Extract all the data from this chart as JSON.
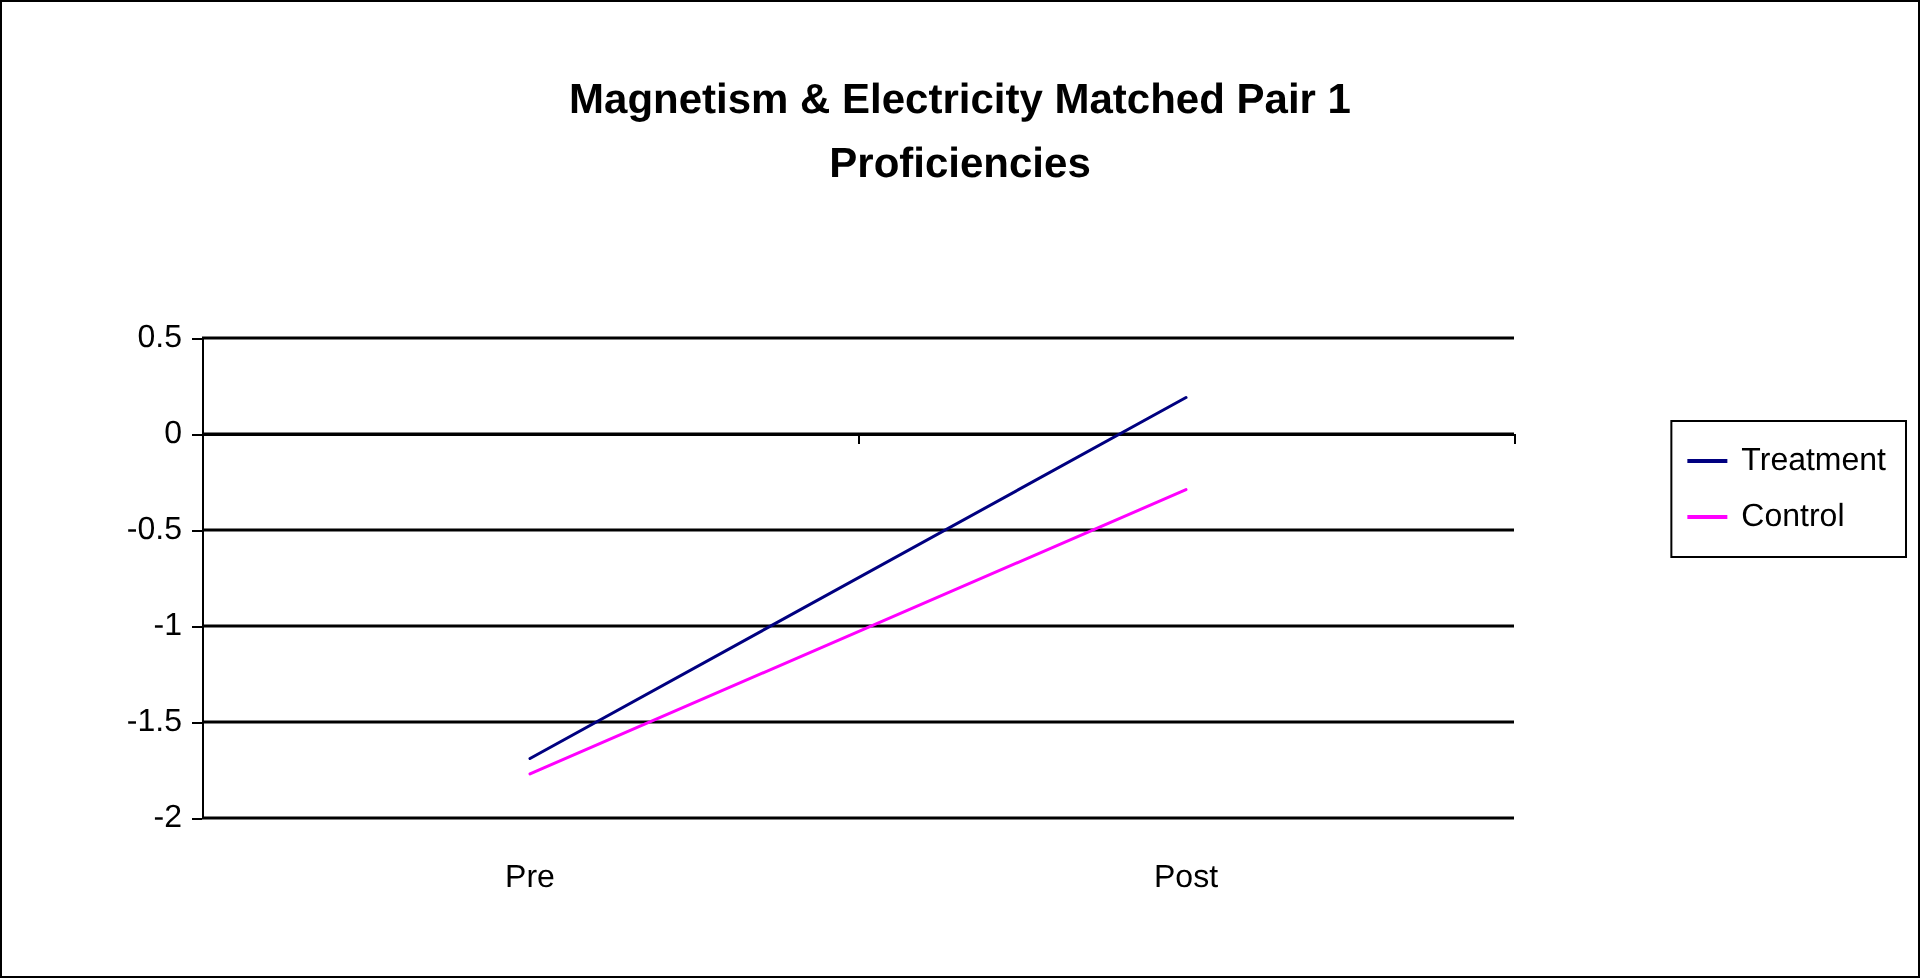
{
  "chart_data": {
    "type": "line",
    "title": "Magnetism & Electricity Matched Pair 1\nProficiencies",
    "categories": [
      "Pre",
      "Post"
    ],
    "series": [
      {
        "name": "Treatment",
        "color": "#000080",
        "values": [
          -1.69,
          0.19
        ]
      },
      {
        "name": "Control",
        "color": "#ff00ff",
        "values": [
          -1.77,
          -0.29
        ]
      }
    ],
    "ylim": [
      -2,
      0.5
    ],
    "yticks": [
      -2,
      -1.5,
      -1,
      -0.5,
      0,
      0.5
    ],
    "grid": "y",
    "legend": "right",
    "marker": "none",
    "line_style": "solid"
  }
}
